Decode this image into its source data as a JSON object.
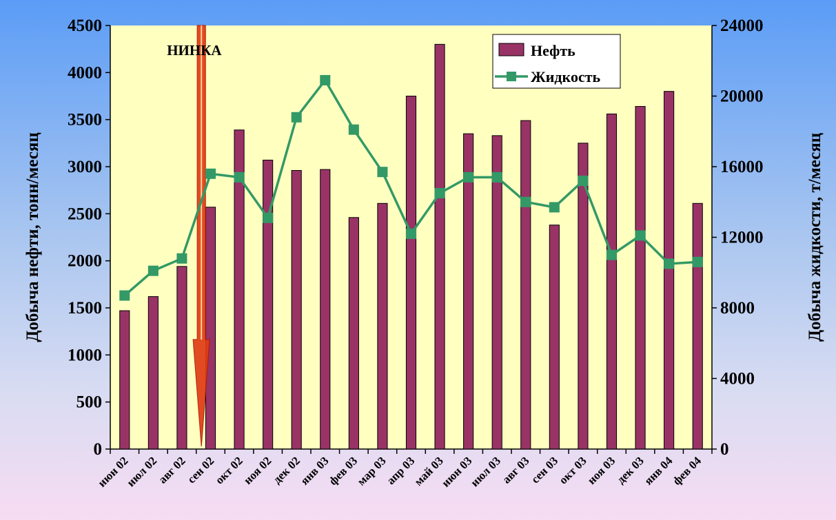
{
  "chart_data": {
    "type": "bar",
    "categories": [
      "июн 02",
      "июл 02",
      "авг 02",
      "сен 02",
      "окт 02",
      "ноя 02",
      "дек 02",
      "янв 03",
      "фев 03",
      "мар 03",
      "апр 03",
      "май 03",
      "июн 03",
      "июл 03",
      "авг 03",
      "сен 03",
      "окт 03",
      "ноя 03",
      "дек 03",
      "янв 04",
      "фев 04"
    ],
    "series": [
      {
        "name": "Нефть",
        "type": "bar",
        "axis": "left",
        "color": "#993366",
        "values": [
          1470,
          1620,
          1940,
          2570,
          3390,
          3070,
          2960,
          2970,
          2460,
          2610,
          3750,
          4300,
          3350,
          3330,
          3490,
          2380,
          3250,
          3560,
          3640,
          3800,
          2610
        ]
      },
      {
        "name": "Жидкость",
        "type": "line",
        "axis": "right",
        "color": "#339966",
        "values": [
          8700,
          10100,
          10800,
          15600,
          15400,
          13100,
          18800,
          20900,
          18100,
          15700,
          12200,
          14500,
          15400,
          15400,
          14000,
          13700,
          15200,
          11000,
          12100,
          10500,
          10600
        ]
      }
    ],
    "ylabel": "Добыча нефти, тонн/месяц",
    "y2label": "Добыча жидкости, т/месяц",
    "ylim": [
      0,
      4500
    ],
    "y2lim": [
      0,
      24000
    ],
    "yticks": [
      0,
      500,
      1000,
      1500,
      2000,
      2500,
      3000,
      3500,
      4000,
      4500
    ],
    "y2ticks": [
      0,
      4000,
      8000,
      12000,
      16000,
      20000,
      24000
    ],
    "legend_position": "top-right",
    "annotation": {
      "text": "НИНКА",
      "category": "сен 02",
      "color": "#e03c14"
    },
    "plot_background": "#ffffc0"
  }
}
